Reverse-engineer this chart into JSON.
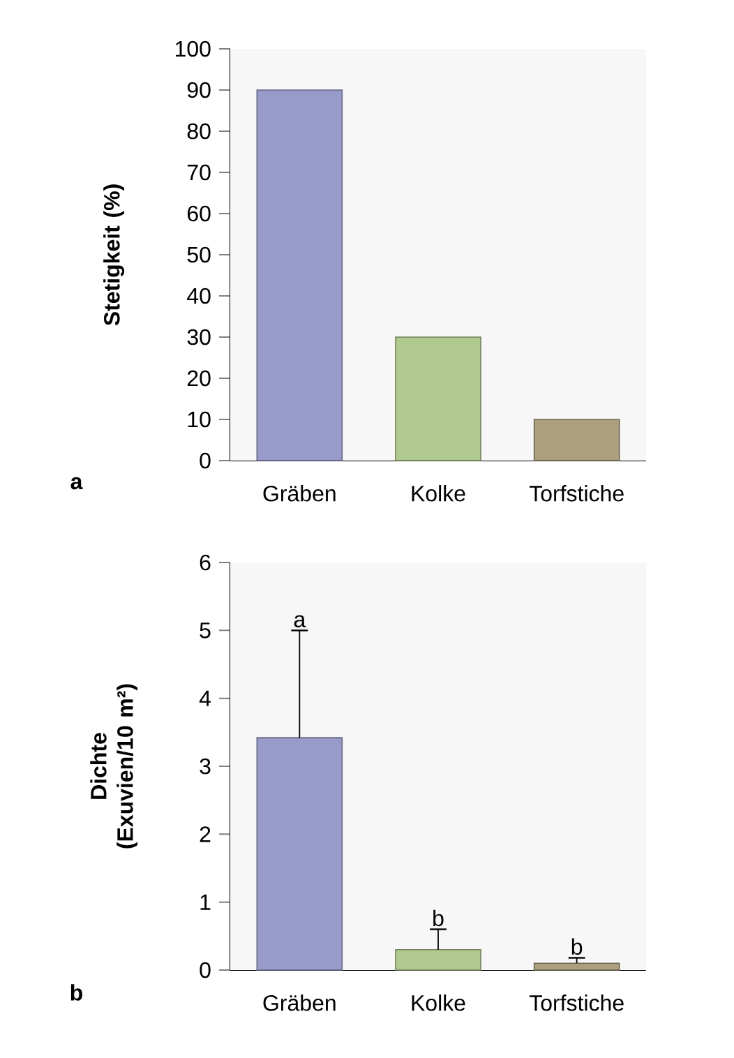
{
  "chart_data": [
    {
      "type": "bar",
      "categories": [
        "Gräben",
        "Kolke",
        "Torfstiche"
      ],
      "values": [
        90,
        30,
        10
      ],
      "colors": [
        "#989bca",
        "#b0c98f",
        "#ab9f80"
      ],
      "ylabel": "Stetigkeit (%)",
      "ylim": [
        0,
        100
      ],
      "yticks": [
        0,
        10,
        20,
        30,
        40,
        50,
        60,
        70,
        80,
        90,
        100
      ],
      "annotations": [
        "a"
      ]
    },
    {
      "type": "bar",
      "categories": [
        "Gräben",
        "Kolke",
        "Torfstiche"
      ],
      "values": [
        3.42,
        0.3,
        0.1
      ],
      "colors": [
        "#989bca",
        "#b0c98f",
        "#ab9f80"
      ],
      "errors": [
        [
          3.42,
          5.0
        ],
        [
          0.3,
          0.6
        ],
        [
          0.1,
          0.18
        ]
      ],
      "ylabel": "Dichte (Exuvien/10 m²)",
      "ylim": [
        0,
        6
      ],
      "yticks": [
        0,
        1,
        2,
        3,
        4,
        5,
        6
      ],
      "annotations": [
        "b",
        {
          "text": "a",
          "x": "Gräben",
          "y": 5.0
        },
        {
          "text": "b",
          "x": "Kolke",
          "y": 0.6
        },
        {
          "text": "b",
          "x": "Torfstiche",
          "y": 0.18
        }
      ]
    }
  ]
}
